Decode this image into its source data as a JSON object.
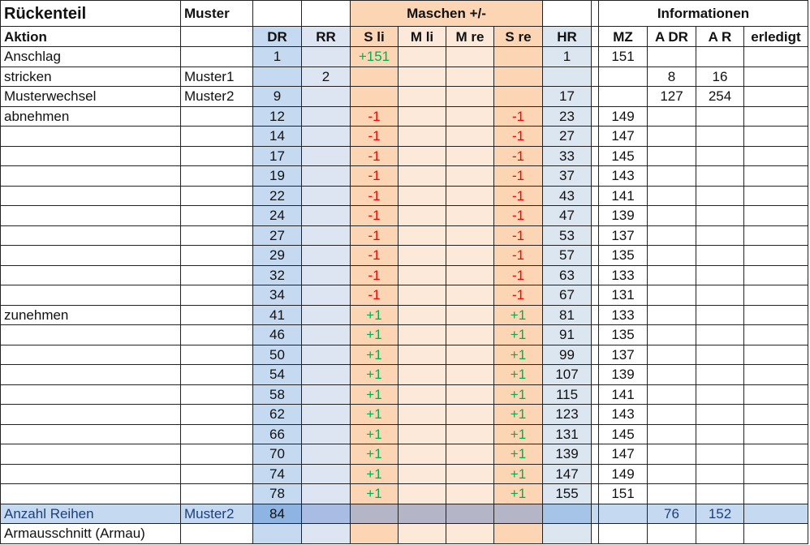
{
  "header": {
    "title": "Rückenteil",
    "pattern": "Muster",
    "stitches": "Maschen +/-",
    "info": "Informationen"
  },
  "columns": [
    "Aktion",
    null,
    "DR",
    "RR",
    "S li",
    "M li",
    "M re",
    "S re",
    "HR",
    "MZ",
    "A DR",
    "A R",
    "erledigt"
  ],
  "rows": [
    [
      "Anschlag",
      null,
      1,
      null,
      "+151",
      null,
      null,
      null,
      1,
      151,
      null,
      null,
      null
    ],
    [
      "stricken",
      "Muster1",
      null,
      2,
      null,
      null,
      null,
      null,
      null,
      null,
      8,
      16,
      null
    ],
    [
      "Musterwechsel",
      "Muster2",
      9,
      null,
      null,
      null,
      null,
      null,
      17,
      null,
      127,
      254,
      null
    ],
    [
      "abnehmen",
      null,
      12,
      null,
      "-1",
      null,
      null,
      "-1",
      23,
      149,
      null,
      null,
      null
    ],
    [
      null,
      null,
      14,
      null,
      "-1",
      null,
      null,
      "-1",
      27,
      147,
      null,
      null,
      null
    ],
    [
      null,
      null,
      17,
      null,
      "-1",
      null,
      null,
      "-1",
      33,
      145,
      null,
      null,
      null
    ],
    [
      null,
      null,
      19,
      null,
      "-1",
      null,
      null,
      "-1",
      37,
      143,
      null,
      null,
      null
    ],
    [
      null,
      null,
      22,
      null,
      "-1",
      null,
      null,
      "-1",
      43,
      141,
      null,
      null,
      null
    ],
    [
      null,
      null,
      24,
      null,
      "-1",
      null,
      null,
      "-1",
      47,
      139,
      null,
      null,
      null
    ],
    [
      null,
      null,
      27,
      null,
      "-1",
      null,
      null,
      "-1",
      53,
      137,
      null,
      null,
      null
    ],
    [
      null,
      null,
      29,
      null,
      "-1",
      null,
      null,
      "-1",
      57,
      135,
      null,
      null,
      null
    ],
    [
      null,
      null,
      32,
      null,
      "-1",
      null,
      null,
      "-1",
      63,
      133,
      null,
      null,
      null
    ],
    [
      null,
      null,
      34,
      null,
      "-1",
      null,
      null,
      "-1",
      67,
      131,
      null,
      null,
      null
    ],
    [
      "zunehmen",
      null,
      41,
      null,
      "+1",
      null,
      null,
      "+1",
      81,
      133,
      null,
      null,
      null
    ],
    [
      null,
      null,
      46,
      null,
      "+1",
      null,
      null,
      "+1",
      91,
      135,
      null,
      null,
      null
    ],
    [
      null,
      null,
      50,
      null,
      "+1",
      null,
      null,
      "+1",
      99,
      137,
      null,
      null,
      null
    ],
    [
      null,
      null,
      54,
      null,
      "+1",
      null,
      null,
      "+1",
      107,
      139,
      null,
      null,
      null
    ],
    [
      null,
      null,
      58,
      null,
      "+1",
      null,
      null,
      "+1",
      115,
      141,
      null,
      null,
      null
    ],
    [
      null,
      null,
      62,
      null,
      "+1",
      null,
      null,
      "+1",
      123,
      143,
      null,
      null,
      null
    ],
    [
      null,
      null,
      66,
      null,
      "+1",
      null,
      null,
      "+1",
      131,
      145,
      null,
      null,
      null
    ],
    [
      null,
      null,
      70,
      null,
      "+1",
      null,
      null,
      "+1",
      139,
      147,
      null,
      null,
      null
    ],
    [
      null,
      null,
      74,
      null,
      "+1",
      null,
      null,
      "+1",
      147,
      149,
      null,
      null,
      null
    ],
    [
      null,
      null,
      78,
      null,
      "+1",
      null,
      null,
      "+1",
      155,
      151,
      null,
      null,
      null
    ],
    [
      "Anzahl Reihen",
      "Muster2",
      84,
      null,
      null,
      null,
      null,
      null,
      null,
      null,
      76,
      152,
      null
    ],
    [
      "Armausschnitt (Armau)",
      null,
      null,
      null,
      null,
      null,
      null,
      null,
      null,
      null,
      null,
      null,
      null
    ]
  ]
}
